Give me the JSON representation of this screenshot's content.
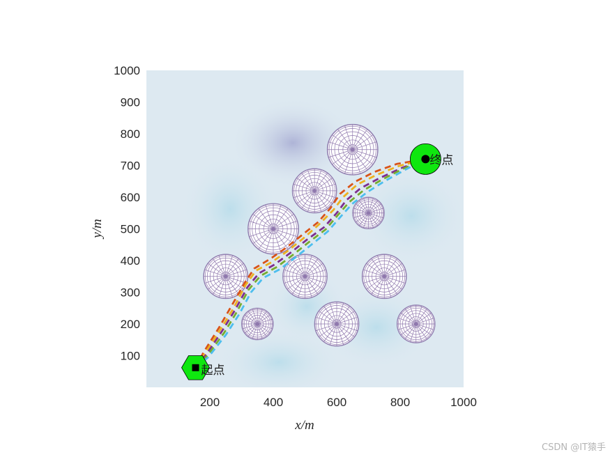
{
  "chart_data": {
    "type": "line",
    "title": "",
    "xlabel": "x/m",
    "ylabel": "y/m",
    "xlim": [
      0,
      1000
    ],
    "ylim": [
      0,
      1000
    ],
    "xticks": [
      200,
      400,
      600,
      800,
      1000
    ],
    "yticks": [
      100,
      200,
      300,
      400,
      500,
      600,
      700,
      800,
      900,
      1000
    ],
    "grid": false,
    "legend": "none",
    "background_colormap": "light-blue terrain surface",
    "obstacles": [
      {
        "x": 650,
        "y": 750,
        "r": 80
      },
      {
        "x": 530,
        "y": 620,
        "r": 70
      },
      {
        "x": 700,
        "y": 550,
        "r": 50
      },
      {
        "x": 400,
        "y": 500,
        "r": 80
      },
      {
        "x": 250,
        "y": 350,
        "r": 70
      },
      {
        "x": 500,
        "y": 350,
        "r": 70
      },
      {
        "x": 750,
        "y": 350,
        "r": 70
      },
      {
        "x": 350,
        "y": 200,
        "r": 50
      },
      {
        "x": 600,
        "y": 200,
        "r": 70
      },
      {
        "x": 850,
        "y": 200,
        "r": 60
      }
    ],
    "start": {
      "x": 155,
      "y": 62,
      "label": "起点"
    },
    "goal": {
      "x": 880,
      "y": 720,
      "label": "终点"
    },
    "series": [
      {
        "color": "#d95319",
        "values": [
          [
            155,
            62
          ],
          [
            180,
            110
          ],
          [
            230,
            190
          ],
          [
            270,
            260
          ],
          [
            310,
            330
          ],
          [
            340,
            375
          ],
          [
            390,
            405
          ],
          [
            440,
            440
          ],
          [
            490,
            480
          ],
          [
            540,
            520
          ],
          [
            580,
            565
          ],
          [
            610,
            610
          ],
          [
            660,
            650
          ],
          [
            720,
            680
          ],
          [
            790,
            705
          ],
          [
            880,
            720
          ]
        ]
      },
      {
        "color": "#edb120",
        "values": [
          [
            155,
            62
          ],
          [
            185,
            108
          ],
          [
            235,
            185
          ],
          [
            275,
            250
          ],
          [
            312,
            322
          ],
          [
            345,
            368
          ],
          [
            395,
            395
          ],
          [
            445,
            430
          ],
          [
            495,
            470
          ],
          [
            545,
            515
          ],
          [
            590,
            560
          ],
          [
            620,
            600
          ],
          [
            665,
            640
          ],
          [
            725,
            670
          ],
          [
            795,
            698
          ],
          [
            880,
            720
          ]
        ]
      },
      {
        "color": "#7e2f8e",
        "values": [
          [
            155,
            62
          ],
          [
            190,
            105
          ],
          [
            240,
            180
          ],
          [
            280,
            245
          ],
          [
            318,
            315
          ],
          [
            355,
            360
          ],
          [
            405,
            388
          ],
          [
            455,
            425
          ],
          [
            505,
            465
          ],
          [
            560,
            505
          ],
          [
            600,
            550
          ],
          [
            630,
            590
          ],
          [
            675,
            628
          ],
          [
            735,
            660
          ],
          [
            805,
            692
          ],
          [
            880,
            720
          ]
        ]
      },
      {
        "color": "#77ac30",
        "values": [
          [
            155,
            62
          ],
          [
            192,
            100
          ],
          [
            245,
            172
          ],
          [
            285,
            238
          ],
          [
            322,
            308
          ],
          [
            360,
            352
          ],
          [
            412,
            380
          ],
          [
            462,
            418
          ],
          [
            512,
            458
          ],
          [
            565,
            498
          ],
          [
            605,
            545
          ],
          [
            640,
            585
          ],
          [
            685,
            622
          ],
          [
            742,
            655
          ],
          [
            810,
            690
          ],
          [
            880,
            720
          ]
        ]
      },
      {
        "color": "#4dbeee",
        "values": [
          [
            155,
            62
          ],
          [
            195,
            95
          ],
          [
            250,
            165
          ],
          [
            292,
            230
          ],
          [
            330,
            300
          ],
          [
            368,
            345
          ],
          [
            420,
            372
          ],
          [
            470,
            410
          ],
          [
            520,
            450
          ],
          [
            572,
            492
          ],
          [
            612,
            538
          ],
          [
            648,
            578
          ],
          [
            695,
            615
          ],
          [
            750,
            650
          ],
          [
            815,
            686
          ],
          [
            880,
            720
          ]
        ]
      }
    ]
  },
  "watermark": "CSDN @IT猿手"
}
